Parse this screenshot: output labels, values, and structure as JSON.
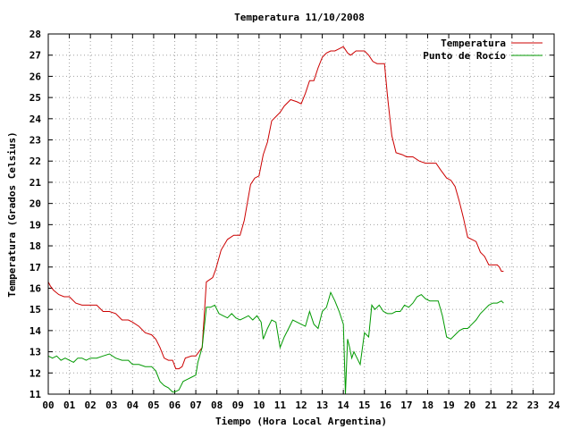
{
  "chart_data": {
    "type": "line",
    "title": "Temperatura 11/10/2008",
    "xlabel": "Tiempo (Hora Local Argentina)",
    "ylabel": "Temperatura (Grados Celsius)",
    "xlim": [
      0,
      24
    ],
    "ylim": [
      11,
      28
    ],
    "x_ticks": [
      "00",
      "01",
      "02",
      "03",
      "04",
      "05",
      "06",
      "07",
      "08",
      "09",
      "10",
      "11",
      "12",
      "13",
      "14",
      "15",
      "16",
      "17",
      "18",
      "19",
      "20",
      "21",
      "22",
      "23",
      "24"
    ],
    "y_ticks": [
      "11",
      "12",
      "13",
      "14",
      "15",
      "16",
      "17",
      "18",
      "19",
      "20",
      "21",
      "22",
      "23",
      "24",
      "25",
      "26",
      "27",
      "28"
    ],
    "grid": true,
    "legend_position": "top-right",
    "series": [
      {
        "name": "Temperatura",
        "color": "#cc0000",
        "x": [
          0,
          0.1,
          0.25,
          0.5,
          0.75,
          1.0,
          1.3,
          1.6,
          2.0,
          2.3,
          2.6,
          2.9,
          3.2,
          3.5,
          3.8,
          4.0,
          4.3,
          4.6,
          4.9,
          5.1,
          5.3,
          5.5,
          5.7,
          5.9,
          6.05,
          6.2,
          6.35,
          6.5,
          6.8,
          7.0,
          7.3,
          7.5,
          7.8,
          7.95,
          8.2,
          8.5,
          8.8,
          9.1,
          9.3,
          9.6,
          9.8,
          10.0,
          10.2,
          10.4,
          10.6,
          10.8,
          11.0,
          11.2,
          11.5,
          11.8,
          12.0,
          12.2,
          12.4,
          12.6,
          12.8,
          13.0,
          13.2,
          13.4,
          13.6,
          13.8,
          14.0,
          14.2,
          14.35,
          14.6,
          14.8,
          15.0,
          15.2,
          15.4,
          15.6,
          15.8,
          15.95,
          16.1,
          16.3,
          16.5,
          16.8,
          17.0,
          17.3,
          17.6,
          17.9,
          18.1,
          18.4,
          18.6,
          18.9,
          19.1,
          19.3,
          19.5,
          19.7,
          19.9,
          20.1,
          20.3,
          20.5,
          20.7,
          20.9,
          21.1,
          21.3,
          21.4,
          21.5,
          21.6
        ],
        "values": [
          16.3,
          16.1,
          15.9,
          15.7,
          15.6,
          15.6,
          15.3,
          15.2,
          15.2,
          15.2,
          14.9,
          14.9,
          14.8,
          14.5,
          14.5,
          14.4,
          14.2,
          13.9,
          13.8,
          13.6,
          13.2,
          12.7,
          12.6,
          12.6,
          12.2,
          12.2,
          12.3,
          12.7,
          12.8,
          12.8,
          13.2,
          16.3,
          16.5,
          16.9,
          17.8,
          18.3,
          18.5,
          18.5,
          19.2,
          20.9,
          21.2,
          21.3,
          22.3,
          22.9,
          23.9,
          24.1,
          24.3,
          24.6,
          24.9,
          24.8,
          24.7,
          25.2,
          25.8,
          25.8,
          26.4,
          26.9,
          27.1,
          27.2,
          27.2,
          27.3,
          27.4,
          27.1,
          27.0,
          27.2,
          27.2,
          27.2,
          27.0,
          26.7,
          26.6,
          26.6,
          26.6,
          25.0,
          23.2,
          22.4,
          22.3,
          22.2,
          22.2,
          22.0,
          21.9,
          21.9,
          21.9,
          21.6,
          21.2,
          21.1,
          20.8,
          20.1,
          19.3,
          18.4,
          18.3,
          18.2,
          17.7,
          17.5,
          17.1,
          17.1,
          17.1,
          17.0,
          16.8,
          16.8
        ]
      },
      {
        "name": "Punto de Rocío",
        "color": "#009900",
        "x": [
          0,
          0.2,
          0.4,
          0.6,
          0.8,
          1.0,
          1.2,
          1.4,
          1.6,
          1.8,
          2.0,
          2.3,
          2.6,
          2.9,
          3.2,
          3.5,
          3.8,
          4.0,
          4.3,
          4.6,
          4.9,
          5.1,
          5.3,
          5.5,
          5.7,
          5.9,
          6.0,
          6.2,
          6.4,
          6.6,
          6.8,
          7.0,
          7.1,
          7.3,
          7.5,
          7.7,
          7.9,
          8.1,
          8.3,
          8.5,
          8.7,
          8.9,
          9.1,
          9.3,
          9.5,
          9.7,
          9.9,
          10.1,
          10.2,
          10.4,
          10.6,
          10.8,
          11.0,
          11.2,
          11.4,
          11.6,
          11.8,
          12.0,
          12.2,
          12.4,
          12.6,
          12.8,
          13.0,
          13.2,
          13.4,
          13.6,
          13.8,
          14.0,
          14.1,
          14.2,
          14.3,
          14.4,
          14.5,
          14.6,
          14.8,
          15.0,
          15.2,
          15.35,
          15.5,
          15.7,
          15.9,
          16.1,
          16.3,
          16.5,
          16.7,
          16.9,
          17.1,
          17.3,
          17.5,
          17.7,
          17.9,
          18.1,
          18.3,
          18.5,
          18.7,
          18.9,
          19.1,
          19.3,
          19.5,
          19.7,
          19.9,
          20.1,
          20.3,
          20.5,
          20.7,
          20.9,
          21.1,
          21.3,
          21.5,
          21.6
        ],
        "values": [
          12.8,
          12.7,
          12.8,
          12.6,
          12.7,
          12.6,
          12.5,
          12.7,
          12.7,
          12.6,
          12.7,
          12.7,
          12.8,
          12.9,
          12.7,
          12.6,
          12.6,
          12.4,
          12.4,
          12.3,
          12.3,
          12.1,
          11.6,
          11.4,
          11.3,
          11.1,
          11.1,
          11.2,
          11.6,
          11.7,
          11.8,
          11.9,
          12.5,
          13.2,
          15.1,
          15.1,
          15.2,
          14.8,
          14.7,
          14.6,
          14.8,
          14.6,
          14.5,
          14.6,
          14.7,
          14.5,
          14.7,
          14.4,
          13.6,
          14.1,
          14.5,
          14.4,
          13.2,
          13.7,
          14.1,
          14.5,
          14.4,
          14.3,
          14.2,
          14.9,
          14.3,
          14.1,
          14.9,
          15.1,
          15.8,
          15.4,
          14.9,
          14.3,
          11.0,
          13.6,
          13.2,
          12.7,
          13.0,
          12.8,
          12.4,
          13.9,
          13.7,
          15.2,
          15.0,
          15.2,
          14.9,
          14.8,
          14.8,
          14.9,
          14.9,
          15.2,
          15.1,
          15.3,
          15.6,
          15.7,
          15.5,
          15.4,
          15.4,
          15.4,
          14.7,
          13.7,
          13.6,
          13.8,
          14.0,
          14.1,
          14.1,
          14.3,
          14.5,
          14.8,
          15.0,
          15.2,
          15.3,
          15.3,
          15.4,
          15.3
        ]
      }
    ]
  }
}
